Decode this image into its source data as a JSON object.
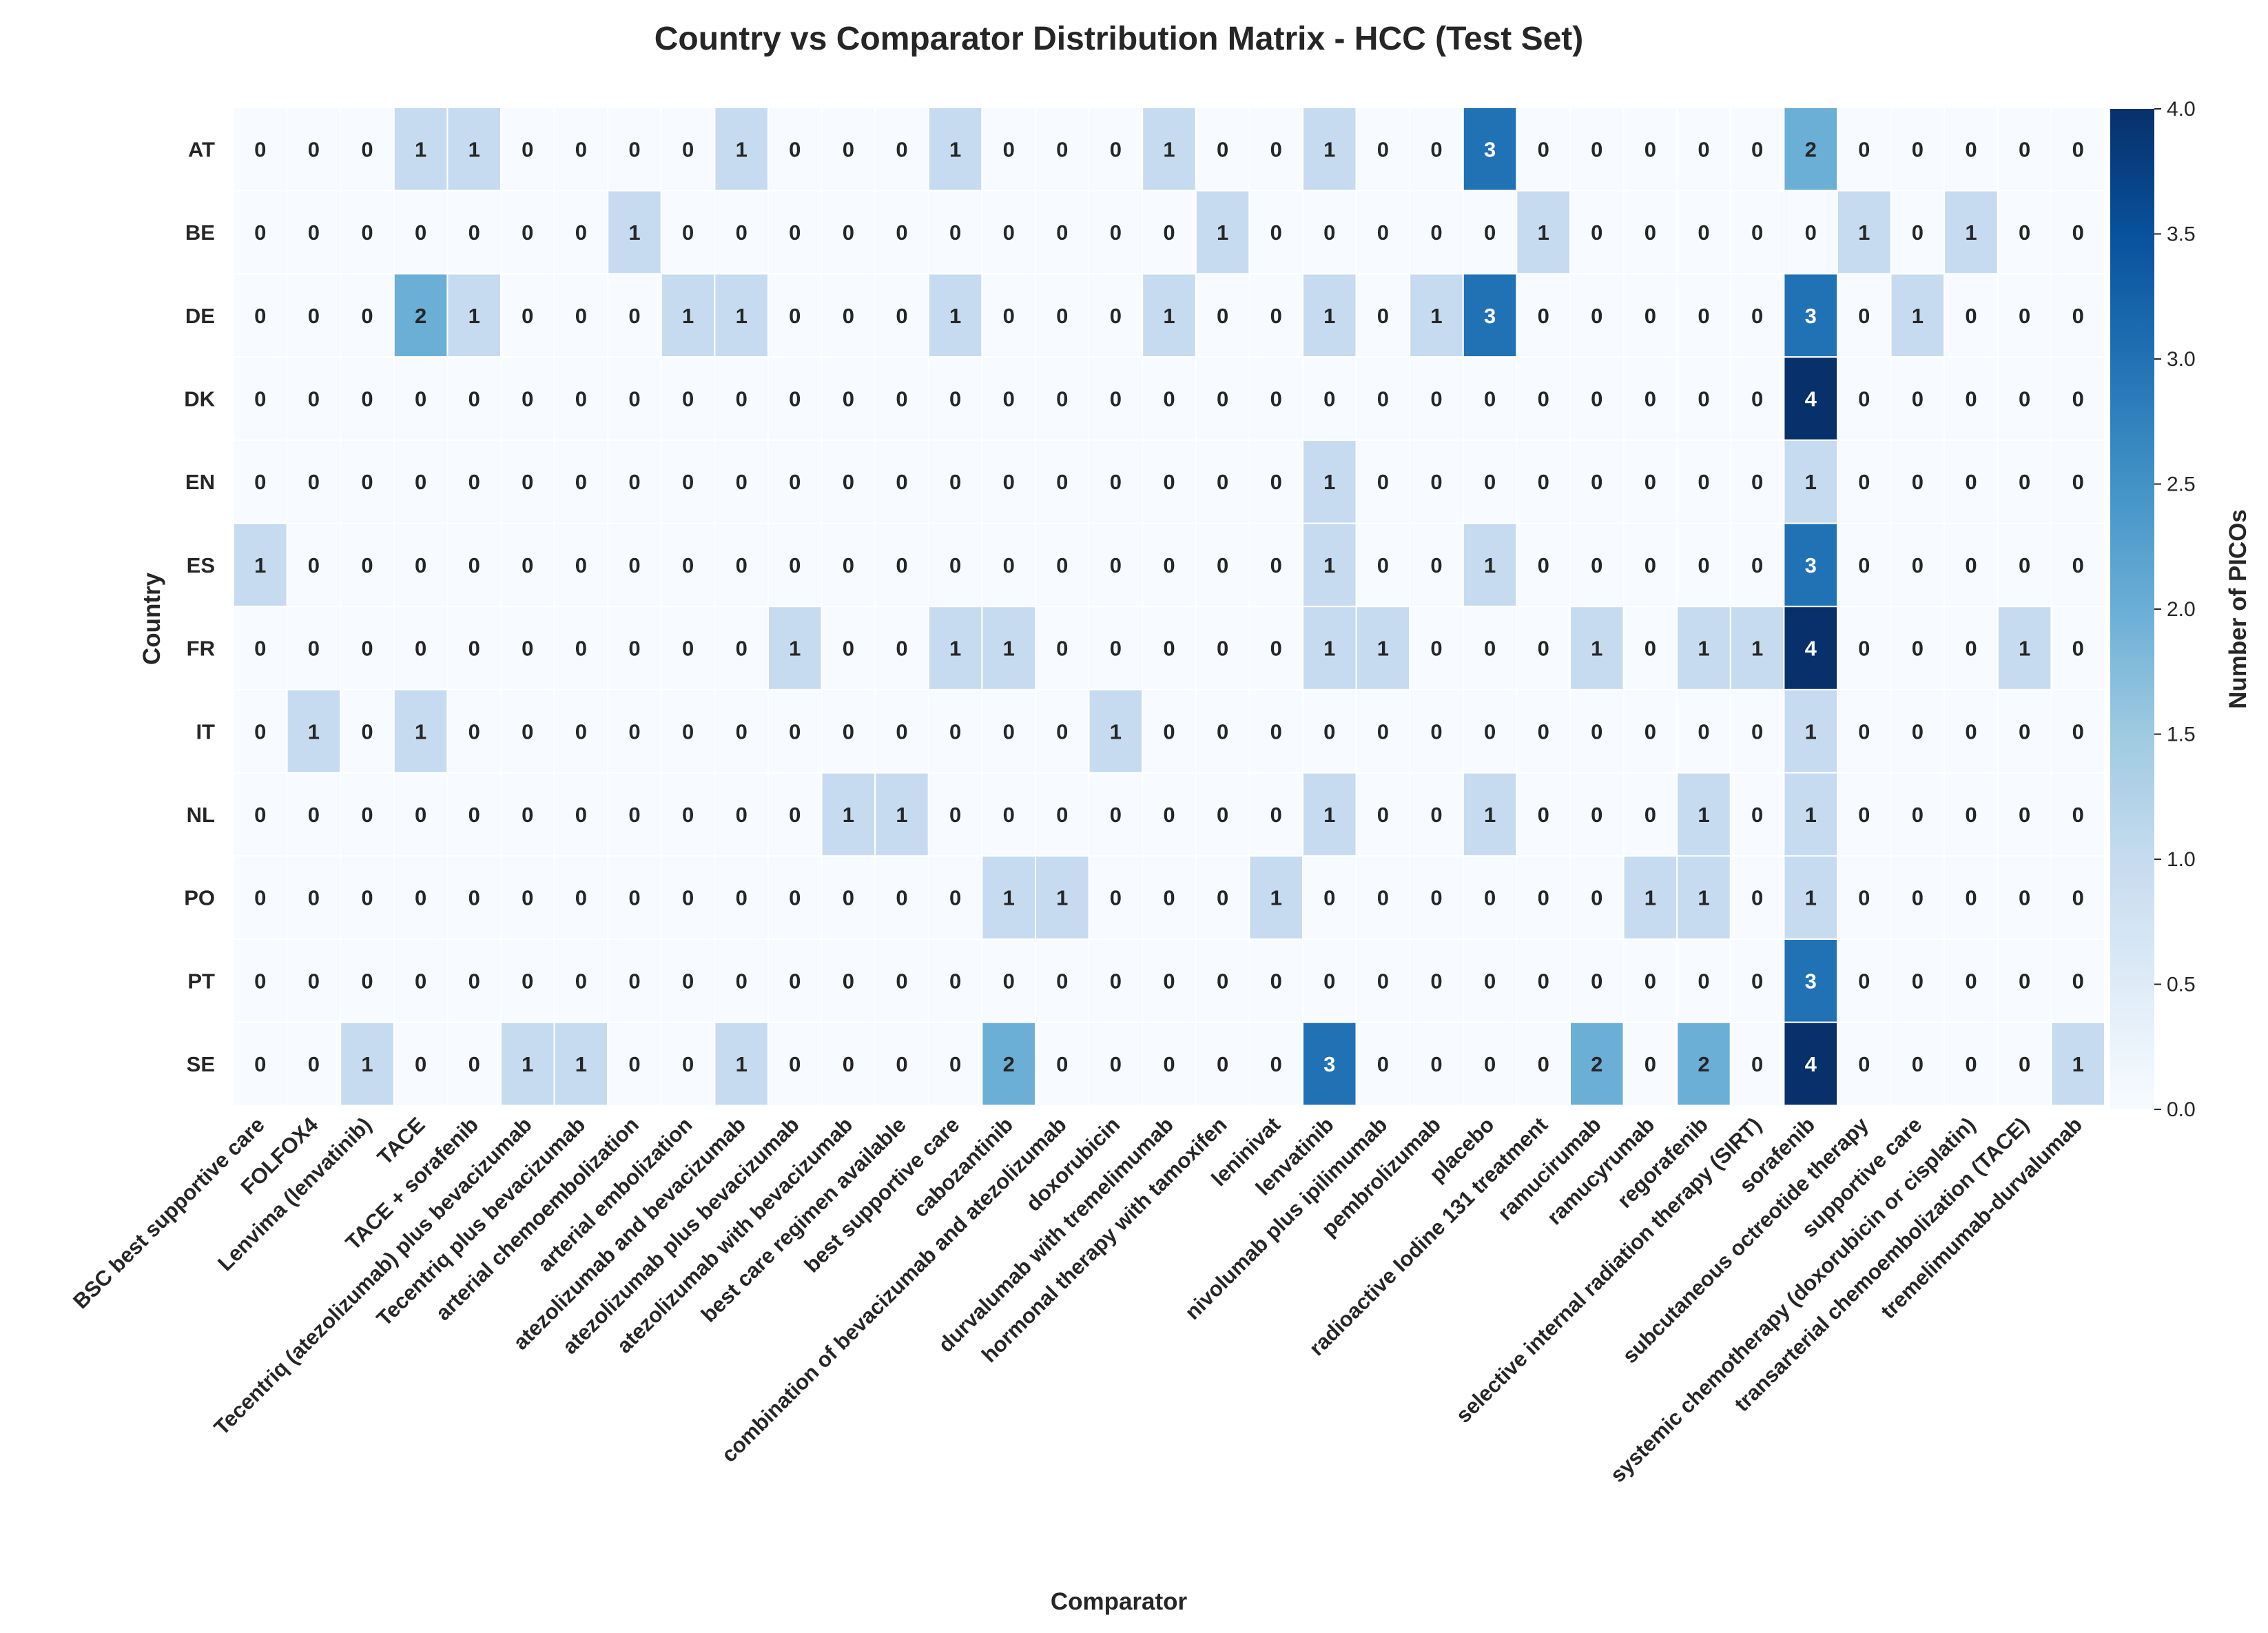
{
  "chart_data": {
    "type": "heatmap",
    "title": "Country vs Comparator Distribution Matrix - HCC (Test Set)",
    "xlabel": "Comparator",
    "ylabel": "Country",
    "colorbar_label": "Number of PICOs",
    "colorbar_ticks": [
      "0.0",
      "0.5",
      "1.0",
      "1.5",
      "2.0",
      "2.5",
      "3.0",
      "3.5",
      "4.0"
    ],
    "colorbar_range": [
      0,
      4
    ],
    "colormap": "Blues",
    "rows": [
      "AT",
      "BE",
      "DE",
      "DK",
      "EN",
      "ES",
      "FR",
      "IT",
      "NL",
      "PO",
      "PT",
      "SE"
    ],
    "columns": [
      "BSC best supportive care",
      "FOLFOX4",
      "Lenvima (lenvatinib)",
      "TACE",
      "TACE + sorafenib",
      "Tecentriq (atezolizumab) plus bevacizumab",
      "Tecentriq plus bevacizumab",
      "arterial chemoembolization",
      "arterial embolization",
      "atezolizumab and bevacizumab",
      "atezolizumab plus bevacizumab",
      "atezolizumab with bevacizumab",
      "best care regimen available",
      "best supportive care",
      "cabozantinib",
      "combination of bevacizumab and atezolizumab",
      "doxorubicin",
      "durvalumab with tremelimumab",
      "hormonal therapy with tamoxifen",
      "leninivat",
      "lenvatinib",
      "nivolumab plus ipilimumab",
      "pembrolizumab",
      "placebo",
      "radioactive Iodine 131 treatment",
      "ramucirumab",
      "ramucyrumab",
      "regorafenib",
      "selective internal radiation therapy (SIRT)",
      "sorafenib",
      "subcutaneous octreotide therapy",
      "supportive care",
      "systemic chemotherapy (doxorubicin or cisplatin)",
      "transarterial chemoembolization (TACE)",
      "tremelimumab-durvalumab"
    ],
    "values": [
      [
        0,
        0,
        0,
        1,
        1,
        0,
        0,
        0,
        0,
        1,
        0,
        0,
        0,
        1,
        0,
        0,
        0,
        1,
        0,
        0,
        1,
        0,
        0,
        3,
        0,
        0,
        0,
        0,
        0,
        2,
        0,
        0,
        0,
        0,
        0
      ],
      [
        0,
        0,
        0,
        0,
        0,
        0,
        0,
        1,
        0,
        0,
        0,
        0,
        0,
        0,
        0,
        0,
        0,
        0,
        1,
        0,
        0,
        0,
        0,
        0,
        1,
        0,
        0,
        0,
        0,
        0,
        1,
        0,
        1,
        0,
        0
      ],
      [
        0,
        0,
        0,
        2,
        1,
        0,
        0,
        0,
        1,
        1,
        0,
        0,
        0,
        1,
        0,
        0,
        0,
        1,
        0,
        0,
        1,
        0,
        1,
        3,
        0,
        0,
        0,
        0,
        0,
        3,
        0,
        1,
        0,
        0,
        0
      ],
      [
        0,
        0,
        0,
        0,
        0,
        0,
        0,
        0,
        0,
        0,
        0,
        0,
        0,
        0,
        0,
        0,
        0,
        0,
        0,
        0,
        0,
        0,
        0,
        0,
        0,
        0,
        0,
        0,
        0,
        4,
        0,
        0,
        0,
        0,
        0
      ],
      [
        0,
        0,
        0,
        0,
        0,
        0,
        0,
        0,
        0,
        0,
        0,
        0,
        0,
        0,
        0,
        0,
        0,
        0,
        0,
        0,
        1,
        0,
        0,
        0,
        0,
        0,
        0,
        0,
        0,
        1,
        0,
        0,
        0,
        0,
        0
      ],
      [
        1,
        0,
        0,
        0,
        0,
        0,
        0,
        0,
        0,
        0,
        0,
        0,
        0,
        0,
        0,
        0,
        0,
        0,
        0,
        0,
        1,
        0,
        0,
        1,
        0,
        0,
        0,
        0,
        0,
        3,
        0,
        0,
        0,
        0,
        0
      ],
      [
        0,
        0,
        0,
        0,
        0,
        0,
        0,
        0,
        0,
        0,
        1,
        0,
        0,
        1,
        1,
        0,
        0,
        0,
        0,
        0,
        1,
        1,
        0,
        0,
        0,
        1,
        0,
        1,
        1,
        4,
        0,
        0,
        0,
        1,
        0
      ],
      [
        0,
        1,
        0,
        1,
        0,
        0,
        0,
        0,
        0,
        0,
        0,
        0,
        0,
        0,
        0,
        0,
        1,
        0,
        0,
        0,
        0,
        0,
        0,
        0,
        0,
        0,
        0,
        0,
        0,
        1,
        0,
        0,
        0,
        0,
        0
      ],
      [
        0,
        0,
        0,
        0,
        0,
        0,
        0,
        0,
        0,
        0,
        0,
        1,
        1,
        0,
        0,
        0,
        0,
        0,
        0,
        0,
        1,
        0,
        0,
        1,
        0,
        0,
        0,
        1,
        0,
        1,
        0,
        0,
        0,
        0,
        0
      ],
      [
        0,
        0,
        0,
        0,
        0,
        0,
        0,
        0,
        0,
        0,
        0,
        0,
        0,
        0,
        1,
        1,
        0,
        0,
        0,
        1,
        0,
        0,
        0,
        0,
        0,
        0,
        1,
        1,
        0,
        1,
        0,
        0,
        0,
        0,
        0
      ],
      [
        0,
        0,
        0,
        0,
        0,
        0,
        0,
        0,
        0,
        0,
        0,
        0,
        0,
        0,
        0,
        0,
        0,
        0,
        0,
        0,
        0,
        0,
        0,
        0,
        0,
        0,
        0,
        0,
        0,
        3,
        0,
        0,
        0,
        0,
        0
      ],
      [
        0,
        0,
        1,
        0,
        0,
        1,
        1,
        0,
        0,
        1,
        0,
        0,
        0,
        0,
        2,
        0,
        0,
        0,
        0,
        0,
        3,
        0,
        0,
        0,
        0,
        2,
        0,
        2,
        0,
        4,
        0,
        0,
        0,
        0,
        1
      ]
    ],
    "annotations": "cell counts shown",
    "grid": false,
    "legend": "colorbar-right"
  }
}
